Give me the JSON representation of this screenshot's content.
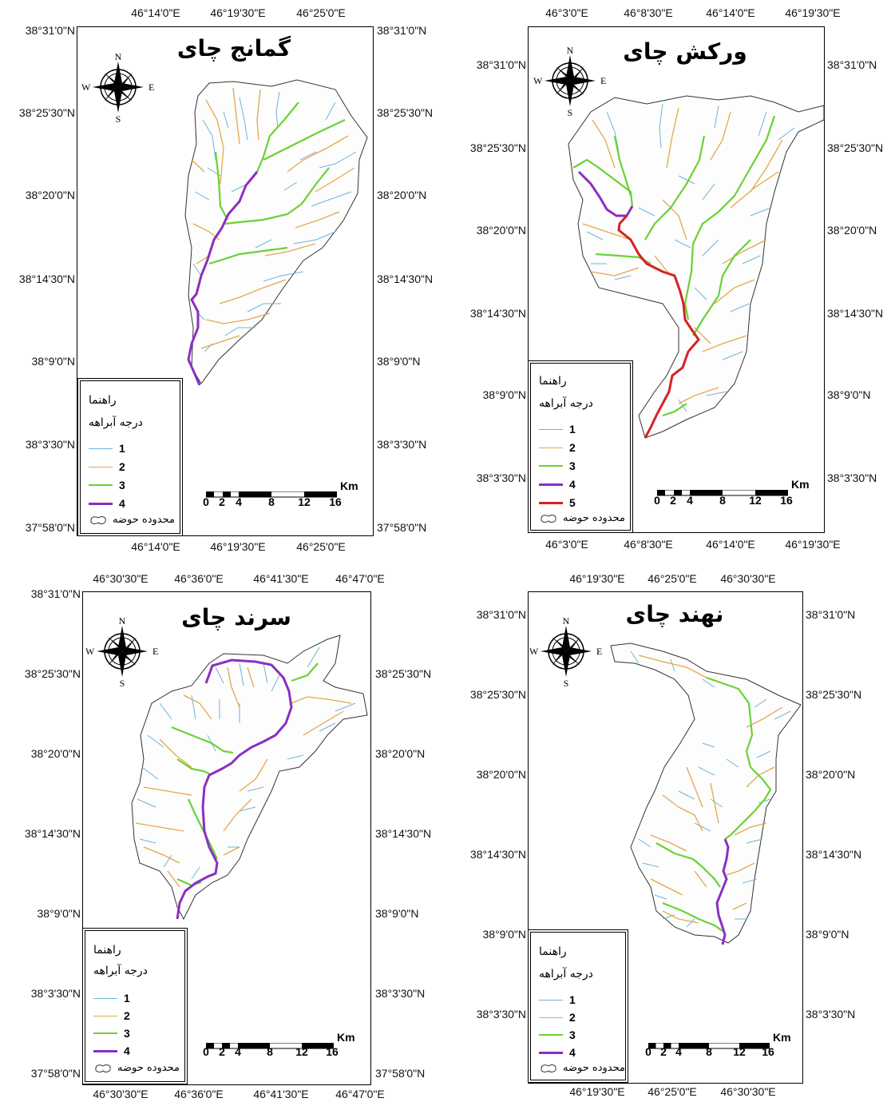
{
  "legend": {
    "title": "راهنما",
    "subtitle": "درجه آبراهه",
    "basin_label": "محدوده حوضه"
  },
  "stream_colors": {
    "1": "#6fb2d9",
    "2": "#e3a84a",
    "3": "#6ad234",
    "4": "#8b2fc0",
    "5": "#d62222"
  },
  "scale": {
    "unit": "Km",
    "labels": [
      "0",
      "2",
      "4",
      "8",
      "12",
      "16"
    ]
  },
  "maps": [
    {
      "id": "gamanj",
      "title": "گمانج چای",
      "top_ticks": [
        "46°14'0\"E",
        "46°19'30\"E",
        "46°25'0\"E"
      ],
      "bottom_ticks": [
        "46°14'0\"E",
        "46°19'30\"E",
        "46°25'0\"E"
      ],
      "left_ticks": [
        "38°31'0\"N",
        "38°25'30\"N",
        "38°20'0\"N",
        "38°14'30\"N",
        "38°9'0\"N",
        "38°3'30\"N",
        "37°58'0\"N"
      ],
      "right_ticks": [
        "38°31'0\"N",
        "38°25'30\"N",
        "38°20'0\"N",
        "38°14'30\"N",
        "38°9'0\"N",
        "38°3'30\"N",
        "37°58'0\"N"
      ],
      "stream_orders": [
        "1",
        "2",
        "3",
        "4"
      ]
    },
    {
      "id": "varkesh",
      "title": "ورکش چای",
      "top_ticks": [
        "46°3'0\"E",
        "46°8'30\"E",
        "46°14'0\"E",
        "46°19'30\"E"
      ],
      "bottom_ticks": [
        "46°3'0\"E",
        "46°8'30\"E",
        "46°14'0\"E",
        "46°19'30\"E"
      ],
      "left_ticks": [
        "38°31'0\"N",
        "38°25'30\"N",
        "38°20'0\"N",
        "38°14'30\"N",
        "38°9'0\"N",
        "38°3'30\"N"
      ],
      "right_ticks": [
        "38°31'0\"N",
        "38°25'30\"N",
        "38°20'0\"N",
        "38°14'30\"N",
        "38°9'0\"N",
        "38°3'30\"N"
      ],
      "stream_orders": [
        "1",
        "2",
        "3",
        "4",
        "5"
      ]
    },
    {
      "id": "sarand",
      "title": "سرند چای",
      "top_ticks": [
        "46°30'30\"E",
        "46°36'0\"E",
        "46°41'30\"E",
        "46°47'0\"E"
      ],
      "bottom_ticks": [
        "46°30'30\"E",
        "46°36'0\"E",
        "46°41'30\"E",
        "46°47'0\"E"
      ],
      "left_ticks": [
        "38°31'0\"N",
        "38°25'30\"N",
        "38°20'0\"N",
        "38°14'30\"N",
        "38°9'0\"N",
        "38°3'30\"N",
        "37°58'0\"N"
      ],
      "right_ticks": [
        "38°25'30\"N",
        "38°20'0\"N",
        "38°14'30\"N",
        "38°9'0\"N",
        "38°3'30\"N",
        "37°58'0\"N"
      ],
      "stream_orders": [
        "1",
        "2",
        "3",
        "4"
      ]
    },
    {
      "id": "nahand",
      "title": "نهند چای",
      "top_ticks": [
        "46°19'30\"E",
        "46°25'0\"E",
        "46°30'30\"E"
      ],
      "bottom_ticks": [
        "46°19'30\"E",
        "46°25'0\"E",
        "46°30'30\"E"
      ],
      "left_ticks": [
        "38°31'0\"N",
        "38°25'30\"N",
        "38°20'0\"N",
        "38°14'30\"N",
        "38°9'0\"N",
        "38°3'30\"N"
      ],
      "right_ticks": [
        "38°31'0\"N",
        "38°25'30\"N",
        "38°20'0\"N",
        "38°14'30\"N",
        "38°9'0\"N",
        "38°3'30\"N"
      ],
      "stream_orders": [
        "1",
        "2",
        "3",
        "4"
      ]
    }
  ]
}
